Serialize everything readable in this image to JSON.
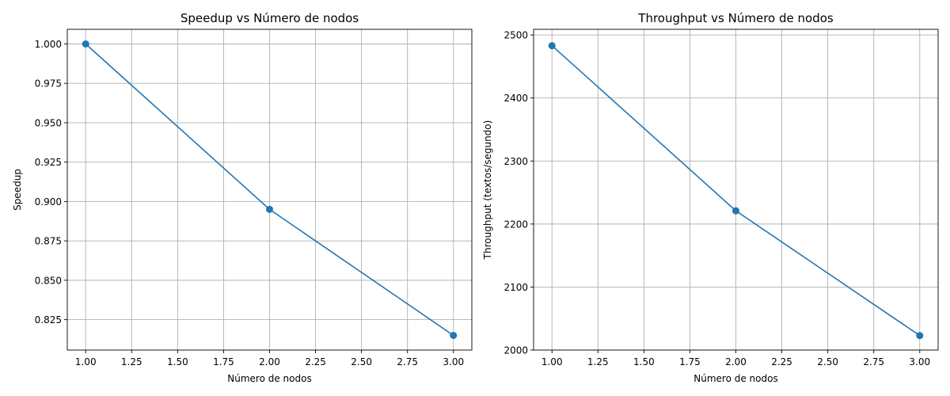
{
  "chart_data": [
    {
      "type": "line",
      "title": "Speedup vs Número de nodos",
      "xlabel": "Número de nodos",
      "ylabel": "Speedup",
      "x": [
        1,
        2,
        3
      ],
      "series": [
        {
          "values": [
            1.0,
            0.895,
            0.815
          ],
          "color": "#1f77b4",
          "marker": "circle"
        }
      ],
      "xlim": [
        0.9,
        3.1
      ],
      "ylim": [
        0.8057,
        1.0093
      ],
      "xticks": [
        "1.00",
        "1.25",
        "1.50",
        "1.75",
        "2.00",
        "2.25",
        "2.50",
        "2.75",
        "3.00"
      ],
      "yticks": [
        "0.825",
        "0.850",
        "0.875",
        "0.900",
        "0.925",
        "0.950",
        "0.975",
        "1.000"
      ],
      "grid": true
    },
    {
      "type": "line",
      "title": "Throughput vs Número de nodos",
      "xlabel": "Número de nodos",
      "ylabel": "Throughput (textos/segundo)",
      "x": [
        1,
        2,
        3
      ],
      "series": [
        {
          "values": [
            2483,
            2221,
            2023
          ],
          "color": "#1f77b4",
          "marker": "circle"
        }
      ],
      "xlim": [
        0.9,
        3.1
      ],
      "ylim": [
        2000,
        2509
      ],
      "xticks": [
        "1.00",
        "1.25",
        "1.50",
        "1.75",
        "2.00",
        "2.25",
        "2.50",
        "2.75",
        "3.00"
      ],
      "yticks": [
        "2000",
        "2100",
        "2200",
        "2300",
        "2400",
        "2500"
      ],
      "grid": true
    }
  ]
}
